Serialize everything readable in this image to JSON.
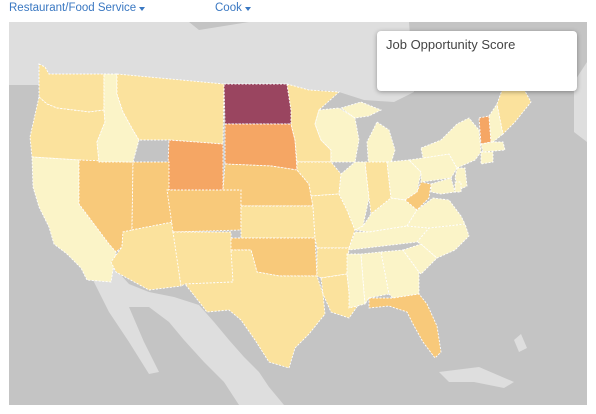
{
  "filters": {
    "industry": "Restaurant/Food Service",
    "occupation": "Cook"
  },
  "legend": {
    "title": "Job Opportunity Score"
  },
  "colors": {
    "land": "#dedede",
    "water": "#c4c4c4",
    "pale": "#fbf4c8",
    "light": "#fbe29d",
    "medium": "#f8c97a",
    "orange": "#f5a664",
    "dark": "#9a4560"
  },
  "states": [
    {
      "id": "WA",
      "level": "light"
    },
    {
      "id": "OR",
      "level": "light"
    },
    {
      "id": "CA",
      "level": "pale"
    },
    {
      "id": "NV",
      "level": "medium"
    },
    {
      "id": "ID",
      "level": "pale"
    },
    {
      "id": "MT",
      "level": "light"
    },
    {
      "id": "WY",
      "level": "orange"
    },
    {
      "id": "UT",
      "level": "medium"
    },
    {
      "id": "AZ",
      "level": "light"
    },
    {
      "id": "CO",
      "level": "medium"
    },
    {
      "id": "NM",
      "level": "light"
    },
    {
      "id": "ND",
      "level": "dark"
    },
    {
      "id": "SD",
      "level": "orange"
    },
    {
      "id": "NE",
      "level": "medium"
    },
    {
      "id": "KS",
      "level": "light"
    },
    {
      "id": "OK",
      "level": "medium"
    },
    {
      "id": "TX",
      "level": "light"
    },
    {
      "id": "MN",
      "level": "light"
    },
    {
      "id": "IA",
      "level": "light"
    },
    {
      "id": "MO",
      "level": "light"
    },
    {
      "id": "AR",
      "level": "light"
    },
    {
      "id": "LA",
      "level": "light"
    },
    {
      "id": "WI",
      "level": "pale"
    },
    {
      "id": "IL",
      "level": "pale"
    },
    {
      "id": "MI",
      "level": "pale"
    },
    {
      "id": "IN",
      "level": "light"
    },
    {
      "id": "OH",
      "level": "pale"
    },
    {
      "id": "KY",
      "level": "pale"
    },
    {
      "id": "TN",
      "level": "pale"
    },
    {
      "id": "MS",
      "level": "pale"
    },
    {
      "id": "AL",
      "level": "pale"
    },
    {
      "id": "GA",
      "level": "pale"
    },
    {
      "id": "FL",
      "level": "medium"
    },
    {
      "id": "SC",
      "level": "pale"
    },
    {
      "id": "NC",
      "level": "pale"
    },
    {
      "id": "VA",
      "level": "pale"
    },
    {
      "id": "WV",
      "level": "medium"
    },
    {
      "id": "PA",
      "level": "pale"
    },
    {
      "id": "NY",
      "level": "pale"
    },
    {
      "id": "VT",
      "level": "orange"
    },
    {
      "id": "NH",
      "level": "pale"
    },
    {
      "id": "ME",
      "level": "light"
    },
    {
      "id": "MA",
      "level": "pale"
    },
    {
      "id": "CT",
      "level": "pale"
    },
    {
      "id": "NJ",
      "level": "pale"
    },
    {
      "id": "MD",
      "level": "pale"
    },
    {
      "id": "DE",
      "level": "pale"
    }
  ]
}
